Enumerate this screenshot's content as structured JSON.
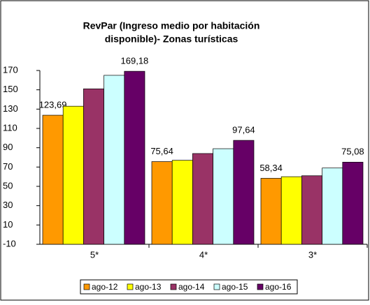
{
  "chart_data": {
    "type": "bar",
    "title": [
      "RevPar (Ingreso medio por habitación",
      "disponible)- Zonas turísticas"
    ],
    "categories": [
      "5*",
      "4*",
      "3*"
    ],
    "series": [
      {
        "name": "ago-12",
        "color": "#ff9900",
        "values": [
          123.69,
          75.64,
          58.34
        ],
        "value_labels": [
          "123,69",
          "75,64",
          "58,34"
        ]
      },
      {
        "name": "ago-13",
        "color": "#ffff00",
        "values": [
          133,
          77,
          60
        ]
      },
      {
        "name": "ago-14",
        "color": "#993366",
        "values": [
          151,
          84,
          61
        ]
      },
      {
        "name": "ago-15",
        "color": "#ccffff",
        "values": [
          165,
          89,
          69
        ]
      },
      {
        "name": "ago-16",
        "color": "#660066",
        "values": [
          169.18,
          97.64,
          75.08
        ],
        "value_labels": [
          "169,18",
          "97,64",
          "75,08"
        ]
      }
    ],
    "ylim": [
      -10,
      170
    ],
    "yticks": [
      -10,
      10,
      30,
      50,
      70,
      90,
      110,
      130,
      150,
      170
    ],
    "legend": "bottom"
  }
}
